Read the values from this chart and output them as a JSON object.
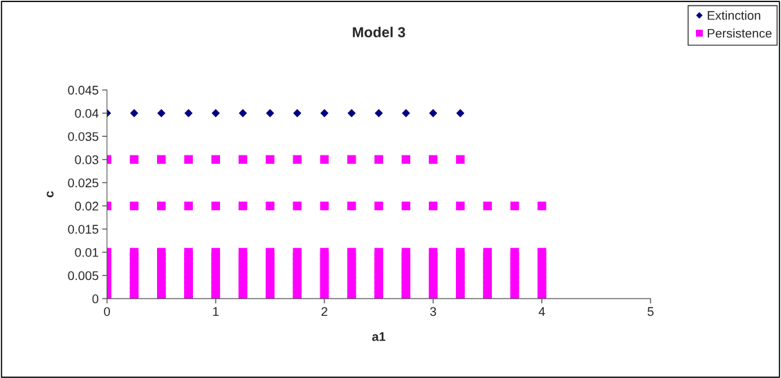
{
  "chart_data": {
    "type": "scatter",
    "title": "Model 3",
    "xlabel": "a1",
    "ylabel": "c",
    "xlim": [
      0,
      5
    ],
    "xticks": [
      0,
      1,
      2,
      3,
      4,
      5
    ],
    "ylim": [
      0,
      0.045
    ],
    "yticks": [
      0,
      0.005,
      0.01,
      0.015,
      0.02,
      0.025,
      0.03,
      0.035,
      0.04,
      0.045
    ],
    "grid": false,
    "legend": "top right",
    "series": [
      {
        "name": "Extinction",
        "color": "#000080",
        "marker": "diamond",
        "x": [
          0,
          0.25,
          0.5,
          0.75,
          1,
          1.25,
          1.5,
          1.75,
          2,
          2.25,
          2.5,
          2.75,
          3,
          3.25
        ],
        "values": [
          0.04,
          0.04,
          0.04,
          0.04,
          0.04,
          0.04,
          0.04,
          0.04,
          0.04,
          0.04,
          0.04,
          0.04,
          0.04,
          0.04
        ]
      },
      {
        "name": "Persistence",
        "color": "#ff00ff",
        "marker": "square",
        "x": [
          0,
          0.25,
          0.5,
          0.75,
          1,
          1.25,
          1.5,
          1.75,
          2,
          2.25,
          2.5,
          2.75,
          3,
          3.25,
          3.5,
          3.75,
          4,
          0,
          0.25,
          0.5,
          0.75,
          1,
          1.25,
          1.5,
          1.75,
          2,
          2.25,
          2.5,
          2.75,
          3,
          3.25,
          3.5,
          3.75,
          4,
          0,
          0.25,
          0.5,
          0.75,
          1,
          1.25,
          1.5,
          1.75,
          2,
          2.25,
          2.5,
          2.75,
          3,
          3.25,
          3.5,
          3.75,
          4,
          0,
          0.25,
          0.5,
          0.75,
          1,
          1.25,
          1.5,
          1.75,
          2,
          2.25,
          2.5,
          2.75,
          3,
          3.25,
          3.5,
          3.75,
          4,
          0,
          0.25,
          0.5,
          0.75,
          1,
          1.25,
          1.5,
          1.75,
          2,
          2.25,
          2.5,
          2.75,
          3,
          3.25,
          3.5,
          3.75,
          4,
          0,
          0.25,
          0.5,
          0.75,
          1,
          1.25,
          1.5,
          1.75,
          2,
          2.25,
          2.5,
          2.75,
          3,
          3.25,
          3.5,
          3.75,
          4,
          0,
          0.25,
          0.5,
          0.75,
          1,
          1.25,
          1.5,
          1.75,
          2,
          2.25,
          2.5,
          2.75,
          3,
          3.25,
          3.5,
          3.75,
          4,
          0,
          0.25,
          0.5,
          0.75,
          1,
          1.25,
          1.5,
          1.75,
          2,
          2.25,
          2.5,
          2.75,
          3,
          3.25,
          3.5,
          3.75,
          4,
          0,
          0.25,
          0.5,
          0.75,
          1,
          1.25,
          1.5,
          1.75,
          2,
          2.25,
          2.5,
          2.75,
          3,
          3.25,
          3.5,
          3.75,
          4,
          0,
          0.25,
          0.5,
          0.75,
          1,
          1.25,
          1.5,
          1.75,
          2,
          2.25,
          2.5,
          2.75,
          3,
          3.25,
          3.5,
          3.75,
          4,
          0,
          0.25,
          0.5,
          0.75,
          1,
          1.25,
          1.5,
          1.75,
          2,
          2.25,
          2.5,
          2.75,
          3,
          3.25,
          3.5,
          3.75,
          4,
          0,
          0.25,
          0.5,
          0.75,
          1,
          1.25,
          1.5,
          1.75,
          2,
          2.25,
          2.5,
          2.75,
          3,
          3.25,
          3.5,
          3.75,
          4,
          0,
          0.25,
          0.5,
          0.75,
          1,
          1.25,
          1.5,
          1.75,
          2,
          2.25,
          2.5,
          2.75,
          3,
          3.25
        ],
        "values": [
          0,
          0,
          0,
          0,
          0,
          0,
          0,
          0,
          0,
          0,
          0,
          0,
          0,
          0,
          0,
          0,
          0,
          0.001,
          0.001,
          0.001,
          0.001,
          0.001,
          0.001,
          0.001,
          0.001,
          0.001,
          0.001,
          0.001,
          0.001,
          0.001,
          0.001,
          0.001,
          0.001,
          0.001,
          0.002,
          0.002,
          0.002,
          0.002,
          0.002,
          0.002,
          0.002,
          0.002,
          0.002,
          0.002,
          0.002,
          0.002,
          0.002,
          0.002,
          0.002,
          0.002,
          0.002,
          0.003,
          0.003,
          0.003,
          0.003,
          0.003,
          0.003,
          0.003,
          0.003,
          0.003,
          0.003,
          0.003,
          0.003,
          0.003,
          0.003,
          0.003,
          0.003,
          0.003,
          0.004,
          0.004,
          0.004,
          0.004,
          0.004,
          0.004,
          0.004,
          0.004,
          0.004,
          0.004,
          0.004,
          0.004,
          0.004,
          0.004,
          0.004,
          0.004,
          0.004,
          0.005,
          0.005,
          0.005,
          0.005,
          0.005,
          0.005,
          0.005,
          0.005,
          0.005,
          0.005,
          0.005,
          0.005,
          0.005,
          0.005,
          0.005,
          0.005,
          0.005,
          0.006,
          0.006,
          0.006,
          0.006,
          0.006,
          0.006,
          0.006,
          0.006,
          0.006,
          0.006,
          0.006,
          0.006,
          0.006,
          0.006,
          0.006,
          0.006,
          0.006,
          0.007,
          0.007,
          0.007,
          0.007,
          0.007,
          0.007,
          0.007,
          0.007,
          0.007,
          0.007,
          0.007,
          0.007,
          0.007,
          0.007,
          0.007,
          0.007,
          0.007,
          0.008,
          0.008,
          0.008,
          0.008,
          0.008,
          0.008,
          0.008,
          0.008,
          0.008,
          0.008,
          0.008,
          0.008,
          0.008,
          0.008,
          0.008,
          0.008,
          0.008,
          0.009,
          0.009,
          0.009,
          0.009,
          0.009,
          0.009,
          0.009,
          0.009,
          0.009,
          0.009,
          0.009,
          0.009,
          0.009,
          0.009,
          0.009,
          0.009,
          0.009,
          0.01,
          0.01,
          0.01,
          0.01,
          0.01,
          0.01,
          0.01,
          0.01,
          0.01,
          0.01,
          0.01,
          0.01,
          0.01,
          0.01,
          0.01,
          0.01,
          0.01,
          0.02,
          0.02,
          0.02,
          0.02,
          0.02,
          0.02,
          0.02,
          0.02,
          0.02,
          0.02,
          0.02,
          0.02,
          0.02,
          0.02,
          0.02,
          0.02,
          0.02,
          0.03,
          0.03,
          0.03,
          0.03,
          0.03,
          0.03,
          0.03,
          0.03,
          0.03,
          0.03,
          0.03,
          0.03,
          0.03,
          0.03
        ]
      }
    ]
  }
}
